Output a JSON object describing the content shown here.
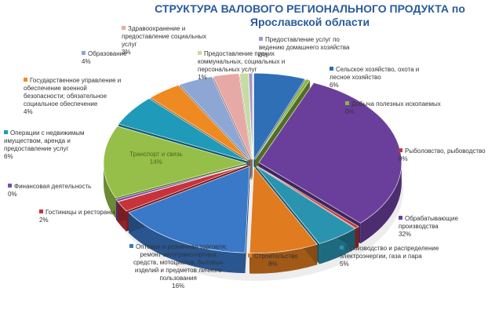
{
  "chart_data": {
    "type": "pie",
    "title": "СТРУКТУРА ВАЛОВОГО РЕГИОНАЛЬНОГО ПРОДУКТА по Ярославской области",
    "slices": [
      {
        "name": "Сельское хозяйство, охота и лесное хозяйство",
        "value": 6,
        "label": "6%",
        "color": "#2e6fb5"
      },
      {
        "name": "Добыча полезных ископаемых",
        "value": 0,
        "label": "0%",
        "color": "#8ab83c"
      },
      {
        "name": "Обрабатывающие производства",
        "value": 32,
        "label": "32%",
        "color": "#6a3f9b"
      },
      {
        "name": "Рыболовство, рыбоводство",
        "value": 0,
        "label": "0%",
        "color": "#c03a35"
      },
      {
        "name": "Производство и распределение электроэнергии, газа и пара",
        "value": 5,
        "label": "5%",
        "color": "#2a93b0"
      },
      {
        "name": "Строительство",
        "value": 8,
        "label": "8%",
        "color": "#e07b20"
      },
      {
        "name": "Оптовая и розничная торговля; ремонт автотранспортных средств, мотоциклов, бытовых изделий и предметов личного пользования",
        "value": 16,
        "label": "16%",
        "color": "#3a78c8"
      },
      {
        "name": "Гостиницы и рестораны",
        "value": 2,
        "label": "2%",
        "color": "#c8323a"
      },
      {
        "name": "Финансовая деятельность",
        "value": 0,
        "label": "0%",
        "color": "#7b4ea8"
      },
      {
        "name": "Транспорт и связь",
        "value": 14,
        "label": "14%",
        "color": "#95bf48"
      },
      {
        "name": "Операции с недвижимым имуществом, аренда и предоставление услуг",
        "value": 6,
        "label": "6%",
        "color": "#1f9ab8"
      },
      {
        "name": "Государственное управление и обеспечение военной безопасности; обязательное социальное обеспечение",
        "value": 4,
        "label": "4%",
        "color": "#ef8a22"
      },
      {
        "name": "Образование",
        "value": 4,
        "label": "4%",
        "color": "#8ea6d4"
      },
      {
        "name": "Здравоохранение и предоставление социальных услуг",
        "value": 3,
        "label": "3%",
        "color": "#e7a9a6"
      },
      {
        "name": "Предоставление прочих коммунальных, социальных и персональных услуг",
        "value": 1,
        "label": "1%",
        "color": "#c6dca0"
      },
      {
        "name": "Предоставление услуг по ведению домашнего хозяйства",
        "value": 0,
        "label": "0%",
        "color": "#a795c8"
      }
    ],
    "legend": "none",
    "grid": false
  },
  "labels": [
    {
      "slice": 0,
      "lines": [
        "Сельское хозяйство, охота и",
        "лесное хозяйство"
      ],
      "pct": "6%"
    },
    {
      "slice": 1,
      "lines": [
        "Добыча полезных ископаемых"
      ],
      "pct": "0%"
    },
    {
      "slice": 2,
      "lines": [
        "Обрабатывающие",
        "производства"
      ],
      "pct": "32%"
    },
    {
      "slice": 3,
      "lines": [
        "Рыболовство, рыбоводство"
      ],
      "pct": "0%"
    },
    {
      "slice": 4,
      "lines": [
        "Производство и распределение",
        "электроэнергии, газа и пара"
      ],
      "pct": "5%"
    },
    {
      "slice": 5,
      "lines": [
        "Строительство"
      ],
      "pct": "8%"
    },
    {
      "slice": 6,
      "lines": [
        "Оптовая и розничная торговля;",
        "ремонт автотранспортных",
        "средств, мотоциклов, бытовых",
        "изделий и предметов личного",
        "пользования"
      ],
      "pct": "16%"
    },
    {
      "slice": 7,
      "lines": [
        "Гостиницы и рестораны"
      ],
      "pct": "2%"
    },
    {
      "slice": 8,
      "lines": [
        "Финансовая деятельность"
      ],
      "pct": "0%"
    },
    {
      "slice": 9,
      "lines": [
        "Транспорт и связь"
      ],
      "pct": "14%"
    },
    {
      "slice": 10,
      "lines": [
        "Операции с недвижимым",
        "имуществом, аренда и",
        "предоставление услуг"
      ],
      "pct": "6%"
    },
    {
      "slice": 11,
      "lines": [
        "Государственное управление и",
        "обеспечение военной",
        "безопасности; обязательное",
        "социальное обеспечение"
      ],
      "pct": "4%"
    },
    {
      "slice": 12,
      "lines": [
        "Образование"
      ],
      "pct": "4%"
    },
    {
      "slice": 13,
      "lines": [
        "Здравоохранение и",
        "предоставление социальных",
        "услуг"
      ],
      "pct": "3%"
    },
    {
      "slice": 14,
      "lines": [
        "Предоставление прочих",
        "коммунальных, социальных и",
        "персональных услуг"
      ],
      "pct": "1%"
    },
    {
      "slice": 15,
      "lines": [
        "Предоставление услуг по",
        "ведению домашнего хозяйства"
      ],
      "pct": "0%"
    }
  ]
}
